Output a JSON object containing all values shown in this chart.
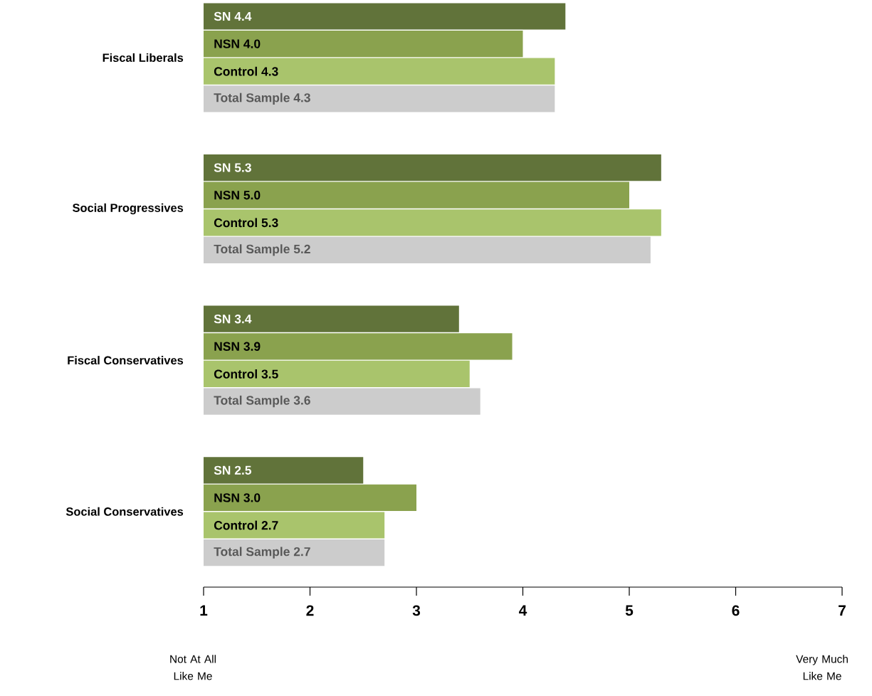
{
  "chart_data": {
    "type": "bar",
    "orientation": "horizontal",
    "categories": [
      "Fiscal Liberals",
      "Social Progressives",
      "Fiscal Conservatives",
      "Social Conservatives"
    ],
    "series": [
      {
        "name": "SN",
        "color": "#61733a",
        "values": [
          4.4,
          5.3,
          3.4,
          2.5
        ],
        "value_labels": [
          "4.4",
          "5.3",
          "3.4",
          "2.5"
        ]
      },
      {
        "name": "NSN",
        "color": "#8aa24e",
        "values": [
          4.0,
          5.0,
          3.9,
          3.0
        ],
        "value_labels": [
          "4.0",
          "5.0",
          "3.9",
          "3.0"
        ]
      },
      {
        "name": "Control",
        "color": "#a9c46c",
        "values": [
          4.3,
          5.3,
          3.5,
          2.7
        ],
        "value_labels": [
          "4.3",
          "5.3",
          "3.5",
          "2.7"
        ]
      },
      {
        "name": "Total Sample",
        "color": "#cccccc",
        "values": [
          4.3,
          5.2,
          3.6,
          2.7
        ],
        "value_labels": [
          "4.3",
          "5.2",
          "3.6",
          "2.7"
        ]
      }
    ],
    "xlim": [
      1,
      7
    ],
    "xticks": [
      1,
      2,
      3,
      4,
      5,
      6,
      7
    ],
    "annotations": [
      "Not At All Like Me",
      "Very Much Like Me"
    ]
  }
}
